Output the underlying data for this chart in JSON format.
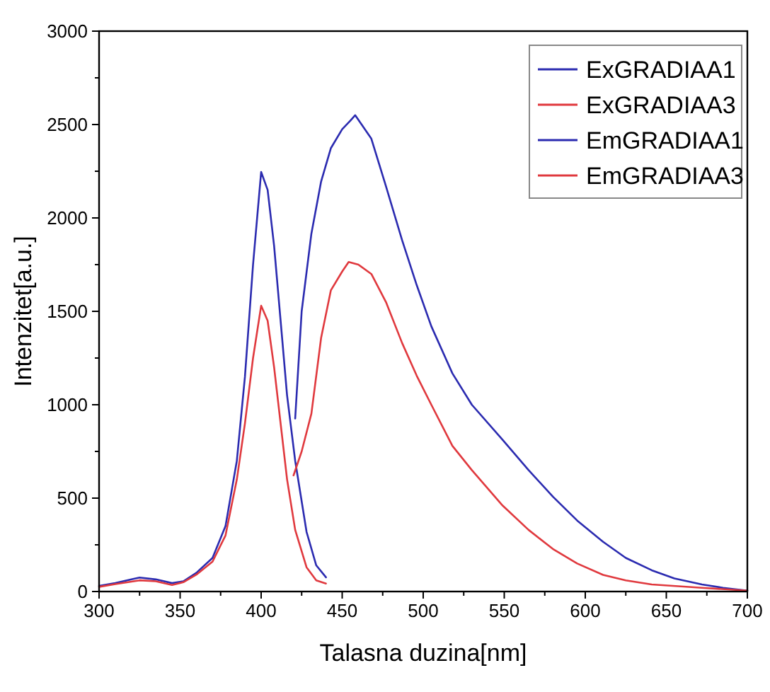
{
  "chart_data": {
    "type": "line",
    "xlabel": "Talasna duzina[nm]",
    "ylabel": "Intenzitet[a.u.]",
    "xlim": [
      300,
      700
    ],
    "ylim": [
      0,
      3000
    ],
    "xticks": [
      300,
      {
        "value": 325,
        "label": null
      },
      350,
      {
        "value": 375,
        "label": null
      },
      400,
      {
        "value": 425,
        "label": null
      },
      450,
      {
        "value": 475,
        "label": null
      },
      500,
      {
        "value": 525,
        "label": null
      },
      550,
      {
        "value": 575,
        "label": null
      },
      600,
      {
        "value": 625,
        "label": null
      },
      650,
      {
        "value": 675,
        "label": null
      },
      700
    ],
    "yticks": [
      0,
      {
        "value": 250,
        "label": null
      },
      500,
      {
        "value": 750,
        "label": null
      },
      1000,
      {
        "value": 1250,
        "label": null
      },
      1500,
      {
        "value": 1750,
        "label": null
      },
      2000,
      {
        "value": 2250,
        "label": null
      },
      2500,
      {
        "value": 2750,
        "label": null
      },
      3000
    ],
    "grid": false,
    "legend": "top right",
    "line_style": "solid",
    "marker": "none",
    "series": [
      {
        "name": "ExGRADIAA1",
        "color": "#2b2bb0",
        "x": [
          300,
          310,
          320,
          325,
          335,
          345,
          352,
          360,
          370,
          378,
          385,
          390,
          395,
          400,
          404,
          408,
          412,
          416,
          421,
          428,
          434,
          440
        ],
        "values": [
          30,
          45,
          65,
          75,
          65,
          45,
          55,
          100,
          180,
          350,
          700,
          1150,
          1750,
          2246,
          2150,
          1850,
          1450,
          1050,
          700,
          320,
          140,
          76
        ]
      },
      {
        "name": "ExGRADIAA3",
        "color": "#e0393e",
        "x": [
          300,
          310,
          325,
          335,
          345,
          352,
          360,
          370,
          378,
          385,
          390,
          395,
          400,
          404,
          408,
          412,
          416,
          421,
          428,
          434,
          440
        ],
        "values": [
          25,
          40,
          60,
          55,
          35,
          50,
          90,
          160,
          300,
          600,
          900,
          1250,
          1530,
          1450,
          1200,
          900,
          600,
          330,
          130,
          60,
          43
        ]
      },
      {
        "name": "EmGRADIAA1",
        "color": "#2b2bb0",
        "x": [
          421,
          425,
          431,
          437,
          443,
          450,
          455,
          458,
          462,
          468,
          477,
          487,
          496,
          505,
          518,
          530,
          549,
          565,
          580,
          595,
          611,
          625,
          641,
          655,
          672,
          685,
          700
        ],
        "values": [
          926,
          1500,
          1916,
          2195,
          2373,
          2475,
          2520,
          2550,
          2500,
          2424,
          2170,
          1880,
          1640,
          1420,
          1168,
          1000,
          812,
          650,
          508,
          380,
          266,
          180,
          114,
          70,
          38,
          20,
          5
        ]
      },
      {
        "name": "EmGRADIAA3",
        "color": "#e0393e",
        "x": [
          420,
          425,
          431,
          437,
          443,
          450,
          454,
          460,
          468,
          477,
          487,
          496,
          505,
          518,
          530,
          549,
          565,
          580,
          595,
          611,
          625,
          641,
          672,
          700
        ],
        "values": [
          622,
          750,
          952,
          1358,
          1612,
          1713,
          1764,
          1750,
          1700,
          1550,
          1330,
          1155,
          1000,
          780,
          650,
          460,
          330,
          228,
          150,
          89,
          60,
          38,
          20,
          5
        ]
      }
    ]
  }
}
